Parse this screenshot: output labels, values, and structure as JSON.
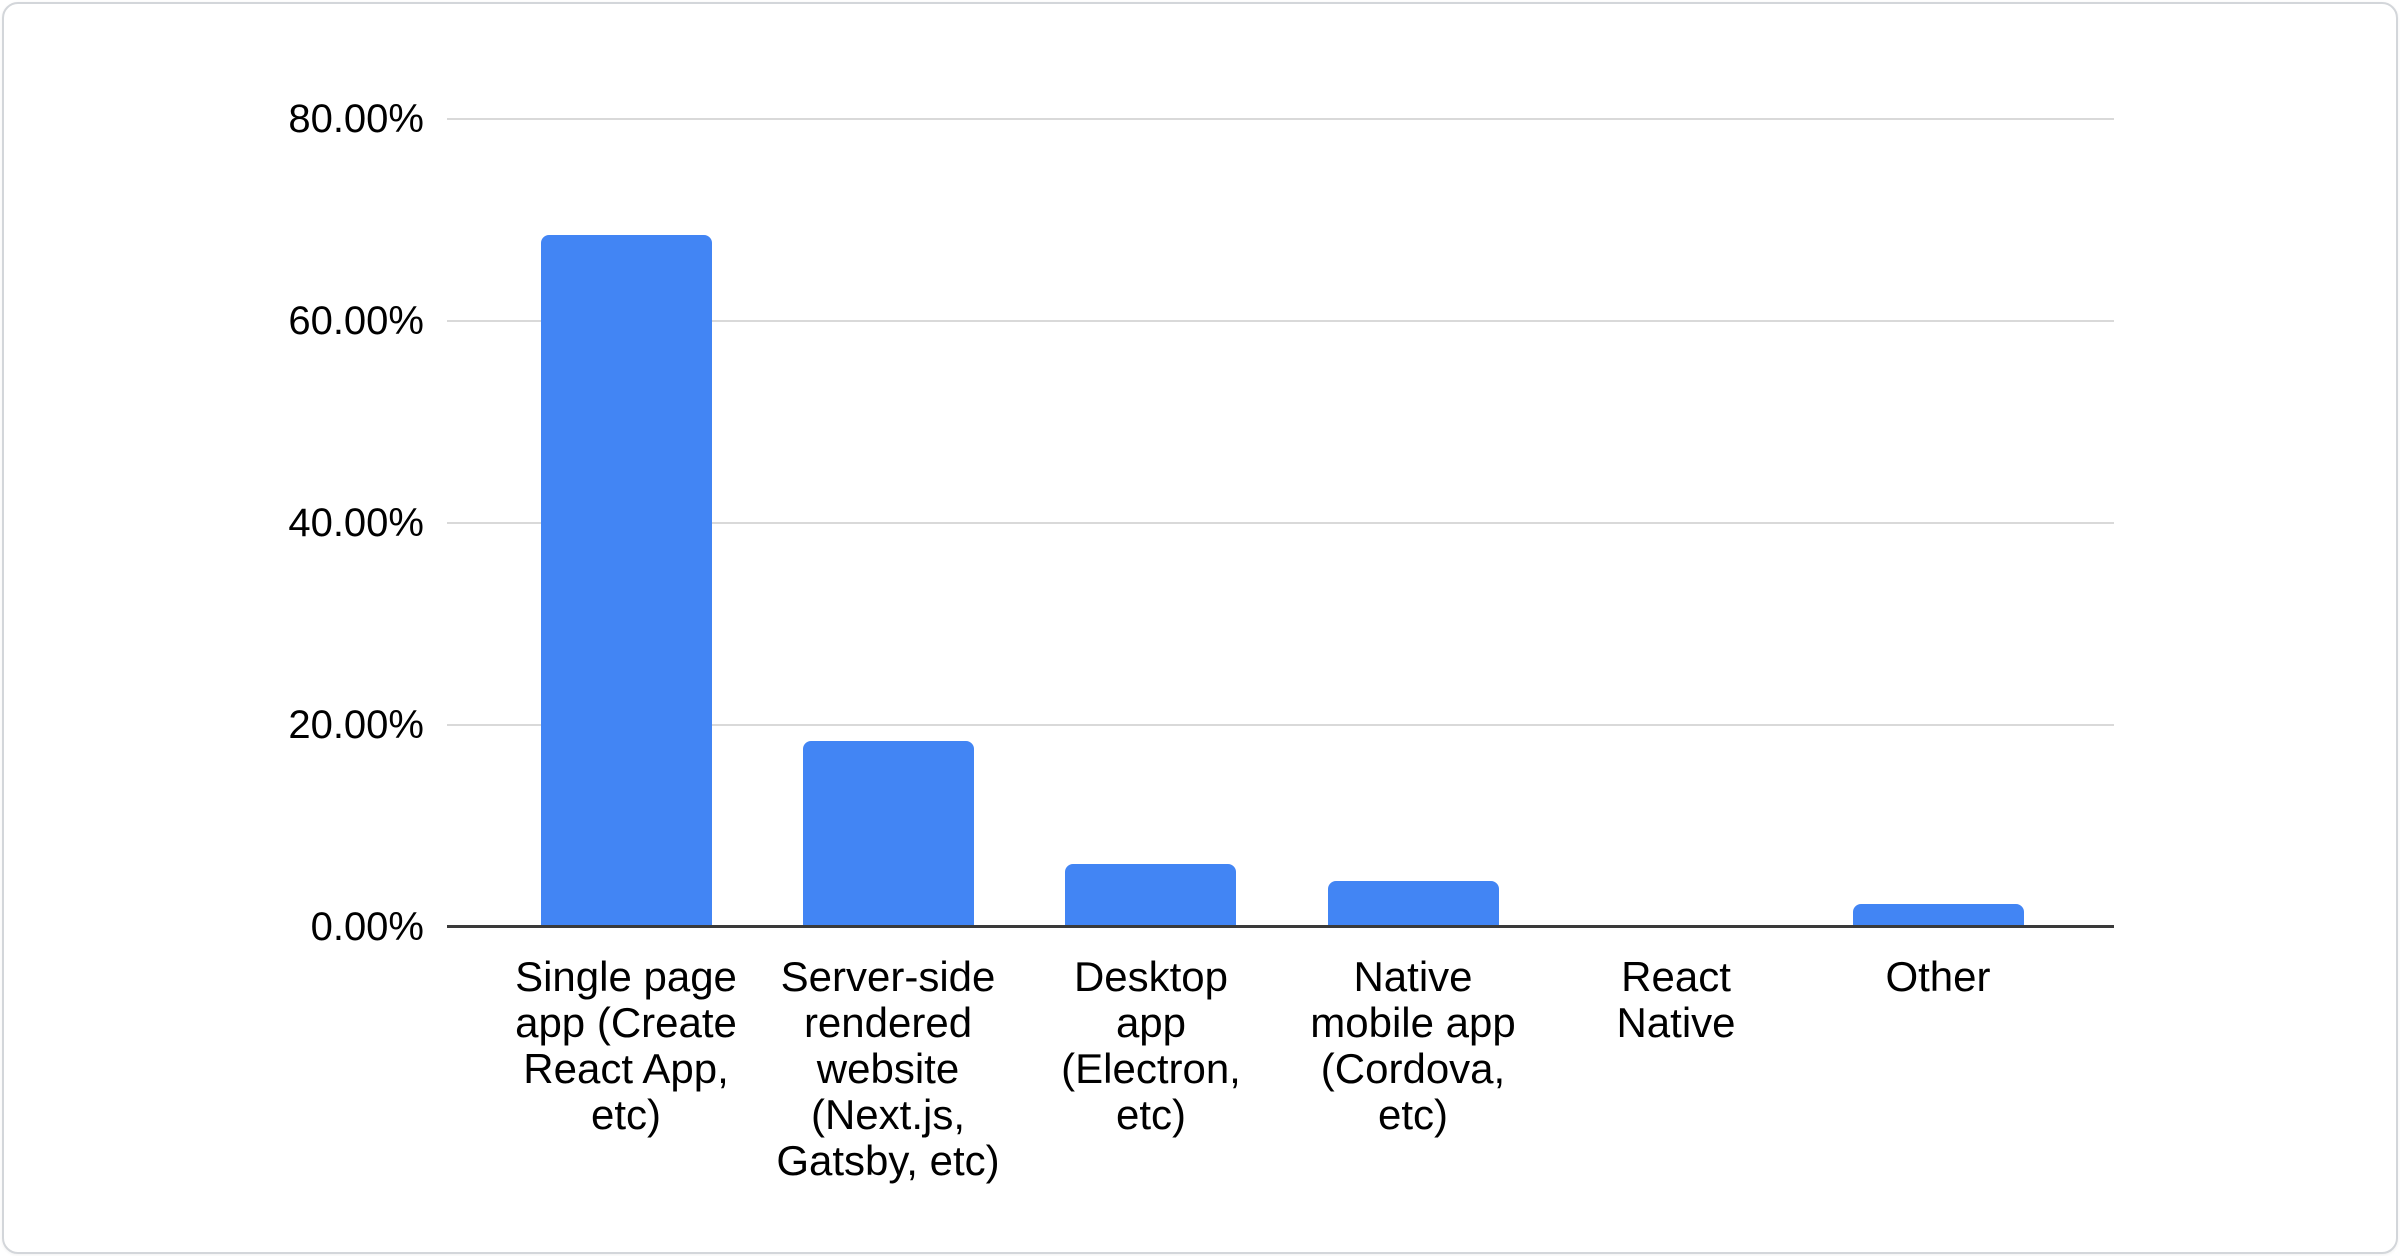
{
  "chart_data": {
    "type": "bar",
    "title": "",
    "xlabel": "",
    "ylabel": "",
    "categories": [
      "Single page app (Create React App, etc)",
      "Server-side rendered website (Next.js, Gatsby, etc)",
      "Desktop app (Electron, etc)",
      "Native mobile app (Cordova, etc)",
      "React Native",
      "Other"
    ],
    "category_display_lines": [
      [
        "Single page",
        "app (Create",
        "React App,",
        "etc)"
      ],
      [
        "Server-side",
        "rendered",
        "website",
        "(Next.js,",
        "Gatsby, etc)"
      ],
      [
        "Desktop",
        "app",
        "(Electron,",
        "etc)"
      ],
      [
        "Native",
        "mobile app",
        "(Cordova,",
        "etc)"
      ],
      [
        "React",
        "Native"
      ],
      [
        "Other"
      ]
    ],
    "values": [
      68.5,
      18.4,
      6.2,
      4.6,
      0,
      2.3
    ],
    "ylim": [
      0,
      80
    ],
    "yticks": [
      0,
      20,
      40,
      60,
      80
    ],
    "ytick_labels": [
      "0.00%",
      "20.00%",
      "40.00%",
      "60.00%",
      "80.00%"
    ],
    "grid": true,
    "legend": "none"
  },
  "colors": {
    "bar": "#4285f4",
    "gridline": "#d9d9d9",
    "axis_baseline": "#3a3a3a",
    "label_text": "#000000",
    "card_border": "#d3d6da",
    "background": "#ffffff"
  }
}
